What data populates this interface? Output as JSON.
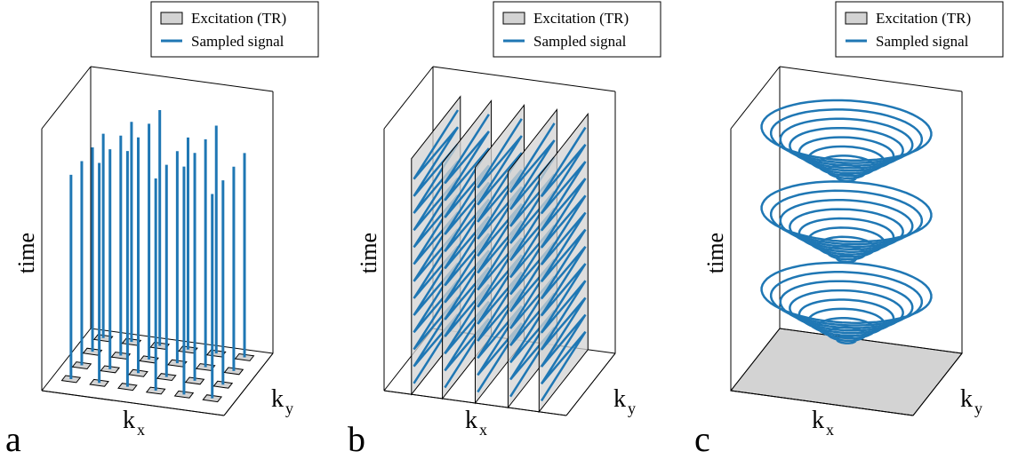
{
  "panels": [
    {
      "letter": "a",
      "legend": [
        "Excitation (TR)",
        "Sampled signal"
      ],
      "time": "time",
      "kx": {
        "base": "k",
        "sub": "x"
      },
      "ky": {
        "base": "k",
        "sub": "y"
      }
    },
    {
      "letter": "b",
      "legend": [
        "Excitation (TR)",
        "Sampled signal"
      ],
      "time": "time",
      "kx": {
        "base": "k",
        "sub": "x"
      },
      "ky": {
        "base": "k",
        "sub": "y"
      }
    },
    {
      "letter": "c",
      "legend": [
        "Excitation (TR)",
        "Sampled signal"
      ],
      "time": "time",
      "kx": {
        "base": "k",
        "sub": "x"
      },
      "ky": {
        "base": "k",
        "sub": "y"
      }
    }
  ]
}
